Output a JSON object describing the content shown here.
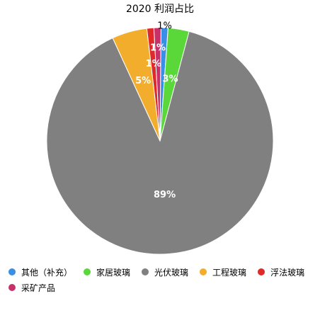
{
  "chart_data": {
    "type": "pie",
    "title": "2020 利润占比",
    "categories": [
      "其他（补充）",
      "家居玻璃",
      "光伏玻璃",
      "工程玻璃",
      "浮法玻璃",
      "采矿产品"
    ],
    "values": [
      1,
      3,
      89,
      5,
      1,
      1
    ],
    "value_labels": [
      "1%",
      "3%",
      "89%",
      "5%",
      "1%",
      "1%"
    ],
    "colors": [
      "#3a8ee6",
      "#5ad83a",
      "#808080",
      "#f2ad2c",
      "#e02a2a",
      "#c8306a"
    ],
    "legend": {
      "position": "bottom"
    }
  }
}
